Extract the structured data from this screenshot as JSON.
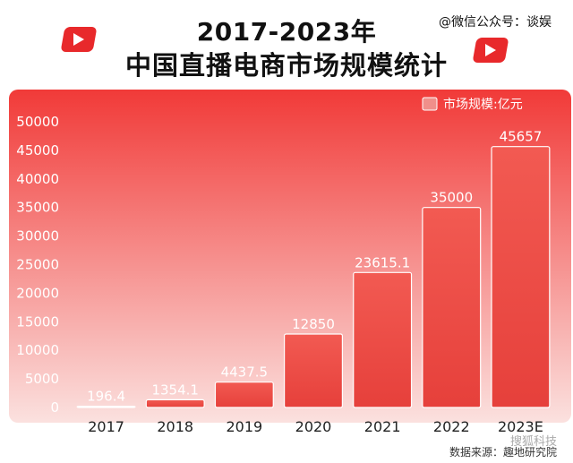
{
  "header": {
    "title_line1": "2017-2023年",
    "title_line2": "中国直播电商市场规模统计",
    "watermark": "@微信公众号：谈娱"
  },
  "footer": {
    "source": "数据来源：趣地研究院",
    "mark": "搜狐科技"
  },
  "colors": {
    "panel_top": "#f13a38",
    "panel_bottom": "#fbe1df",
    "bar_fill": "#ef4540",
    "bar_stroke": "#ffffff",
    "accent": "#e8292b"
  },
  "chart_data": {
    "type": "bar",
    "categories": [
      "2017",
      "2018",
      "2019",
      "2020",
      "2021",
      "2022",
      "2023E"
    ],
    "values": [
      196.4,
      1354.1,
      4437.5,
      12850,
      23615.1,
      35000,
      45657
    ],
    "value_labels": [
      "196.4",
      "1354.1",
      "4437.5",
      "12850",
      "23615.1",
      "35000",
      "45657"
    ],
    "legend": "市场规模:亿元",
    "legend_position": "top-right",
    "ylim": [
      0,
      50000
    ],
    "yticks": [
      0,
      5000,
      10000,
      15000,
      20000,
      25000,
      30000,
      35000,
      40000,
      45000,
      50000
    ],
    "grid": false
  }
}
